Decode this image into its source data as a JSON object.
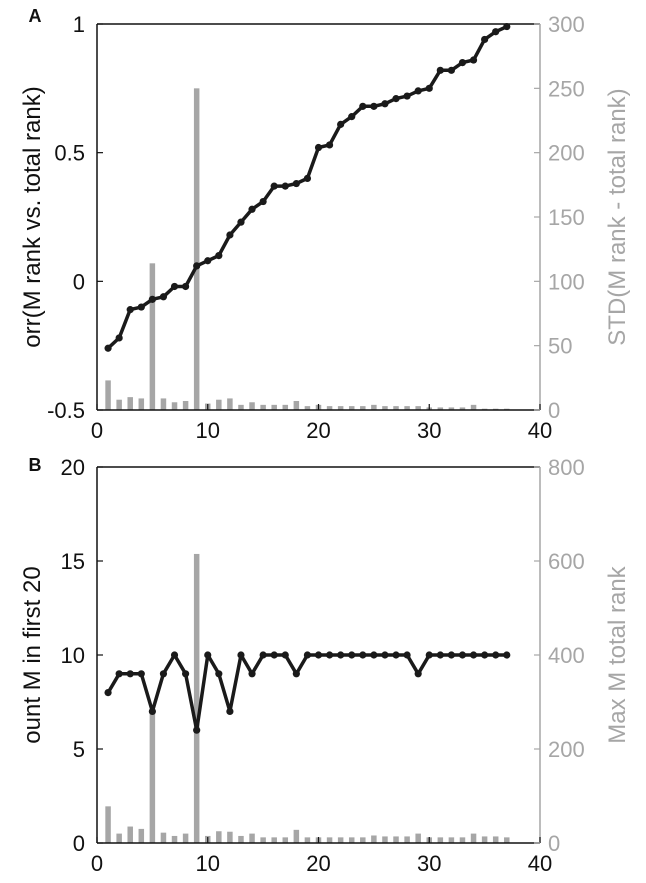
{
  "chart_data": [
    {
      "panel": "A",
      "type": "line",
      "xlim": [
        0,
        40
      ],
      "xticks": [
        0,
        10,
        20,
        30,
        40
      ],
      "ylim": [
        -0.5,
        1
      ],
      "yticks_left": [
        -0.5,
        0,
        0.5,
        1
      ],
      "ylim_right": [
        0,
        300
      ],
      "yticks_right": [
        0,
        50,
        100,
        150,
        200,
        250,
        300
      ],
      "ylabel_left": "orr(M   rank vs. total rank)",
      "ylabel_right": "STD(M   rank - total rank)",
      "line_color": "#1a1a1a",
      "bar_color": "#a6a6a6",
      "x": [
        1,
        2,
        3,
        4,
        5,
        6,
        7,
        8,
        9,
        10,
        11,
        12,
        13,
        14,
        15,
        16,
        17,
        18,
        19,
        20,
        21,
        22,
        23,
        24,
        25,
        26,
        27,
        28,
        29,
        30,
        31,
        32,
        33,
        34,
        35,
        36,
        37
      ],
      "line_values": [
        -0.26,
        -0.22,
        -0.11,
        -0.1,
        -0.07,
        -0.06,
        -0.02,
        -0.02,
        0.06,
        0.08,
        0.1,
        0.18,
        0.23,
        0.28,
        0.31,
        0.37,
        0.37,
        0.38,
        0.4,
        0.52,
        0.53,
        0.61,
        0.64,
        0.68,
        0.68,
        0.69,
        0.71,
        0.72,
        0.74,
        0.75,
        0.82,
        0.82,
        0.85,
        0.86,
        0.94,
        0.97,
        0.99
      ],
      "bar_values": [
        23,
        8,
        10,
        9,
        114,
        9,
        6,
        7,
        250,
        5,
        8,
        9,
        4,
        6,
        4,
        4,
        4,
        7,
        3,
        4,
        3,
        3,
        3,
        3,
        4,
        3,
        3,
        3,
        3,
        2,
        2,
        2,
        2,
        4,
        1,
        1,
        1
      ]
    },
    {
      "panel": "B",
      "type": "line",
      "xlim": [
        0,
        40
      ],
      "xticks": [
        0,
        10,
        20,
        30,
        40
      ],
      "ylim": [
        0,
        20
      ],
      "yticks_left": [
        0,
        5,
        10,
        15,
        20
      ],
      "ylim_right": [
        0,
        800
      ],
      "yticks_right": [
        0,
        200,
        400,
        600,
        800
      ],
      "ylabel_left": "ount M    in first 20",
      "ylabel_right": "Max M    total rank",
      "line_color": "#1a1a1a",
      "bar_color": "#a6a6a6",
      "x": [
        1,
        2,
        3,
        4,
        5,
        6,
        7,
        8,
        9,
        10,
        11,
        12,
        13,
        14,
        15,
        16,
        17,
        18,
        19,
        20,
        21,
        22,
        23,
        24,
        25,
        26,
        27,
        28,
        29,
        30,
        31,
        32,
        33,
        34,
        35,
        36,
        37
      ],
      "line_values": [
        8,
        9,
        9,
        9,
        7,
        9,
        10,
        9,
        6,
        10,
        9,
        7,
        10,
        9,
        10,
        10,
        10,
        9,
        10,
        10,
        10,
        10,
        10,
        10,
        10,
        10,
        10,
        10,
        9,
        10,
        10,
        10,
        10,
        10,
        10,
        10,
        10
      ],
      "bar_values": [
        78,
        20,
        35,
        30,
        275,
        22,
        15,
        20,
        615,
        15,
        25,
        24,
        15,
        20,
        12,
        12,
        12,
        28,
        12,
        12,
        12,
        12,
        12,
        12,
        16,
        14,
        14,
        14,
        20,
        12,
        12,
        12,
        12,
        20,
        14,
        14,
        12
      ]
    }
  ]
}
